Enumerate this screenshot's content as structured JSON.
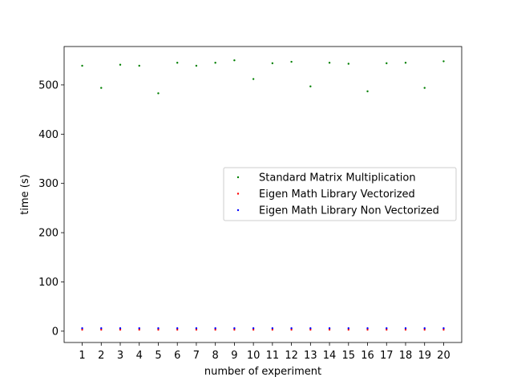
{
  "chart_data": {
    "type": "scatter",
    "xlabel": "number of experiment",
    "ylabel": "time (s)",
    "x": [
      1,
      2,
      3,
      4,
      5,
      6,
      7,
      8,
      9,
      10,
      11,
      12,
      13,
      14,
      15,
      16,
      17,
      18,
      19,
      20
    ],
    "xlim": [
      0.05,
      20.95
    ],
    "ylim": [
      -23,
      578
    ],
    "xticks": [
      "1",
      "2",
      "3",
      "4",
      "5",
      "6",
      "7",
      "8",
      "9",
      "10",
      "11",
      "12",
      "13",
      "14",
      "15",
      "16",
      "17",
      "18",
      "19",
      "20"
    ],
    "yticks": [
      0,
      100,
      200,
      300,
      400,
      500
    ],
    "grid": false,
    "legend_position": "center-right",
    "series": [
      {
        "name": "Standard Matrix Multiplication",
        "color": "#008000",
        "values": [
          539,
          494,
          541,
          539,
          483,
          545,
          539,
          545,
          550,
          512,
          544,
          547,
          497,
          545,
          543,
          487,
          544,
          545,
          494,
          548
        ]
      },
      {
        "name": "Eigen Math Library Vectorized",
        "color": "#ff0000",
        "values": [
          3,
          3,
          3,
          3,
          3,
          3,
          3,
          3,
          3,
          3,
          3,
          3,
          3,
          3,
          3,
          3,
          3,
          3,
          3,
          3
        ]
      },
      {
        "name": "Eigen Math Library Non Vectorized",
        "color": "#0000ff",
        "values": [
          6,
          6,
          6,
          6,
          6,
          6,
          6,
          6,
          6,
          6,
          6,
          6,
          6,
          6,
          6,
          6,
          6,
          6,
          6,
          6
        ]
      }
    ]
  }
}
